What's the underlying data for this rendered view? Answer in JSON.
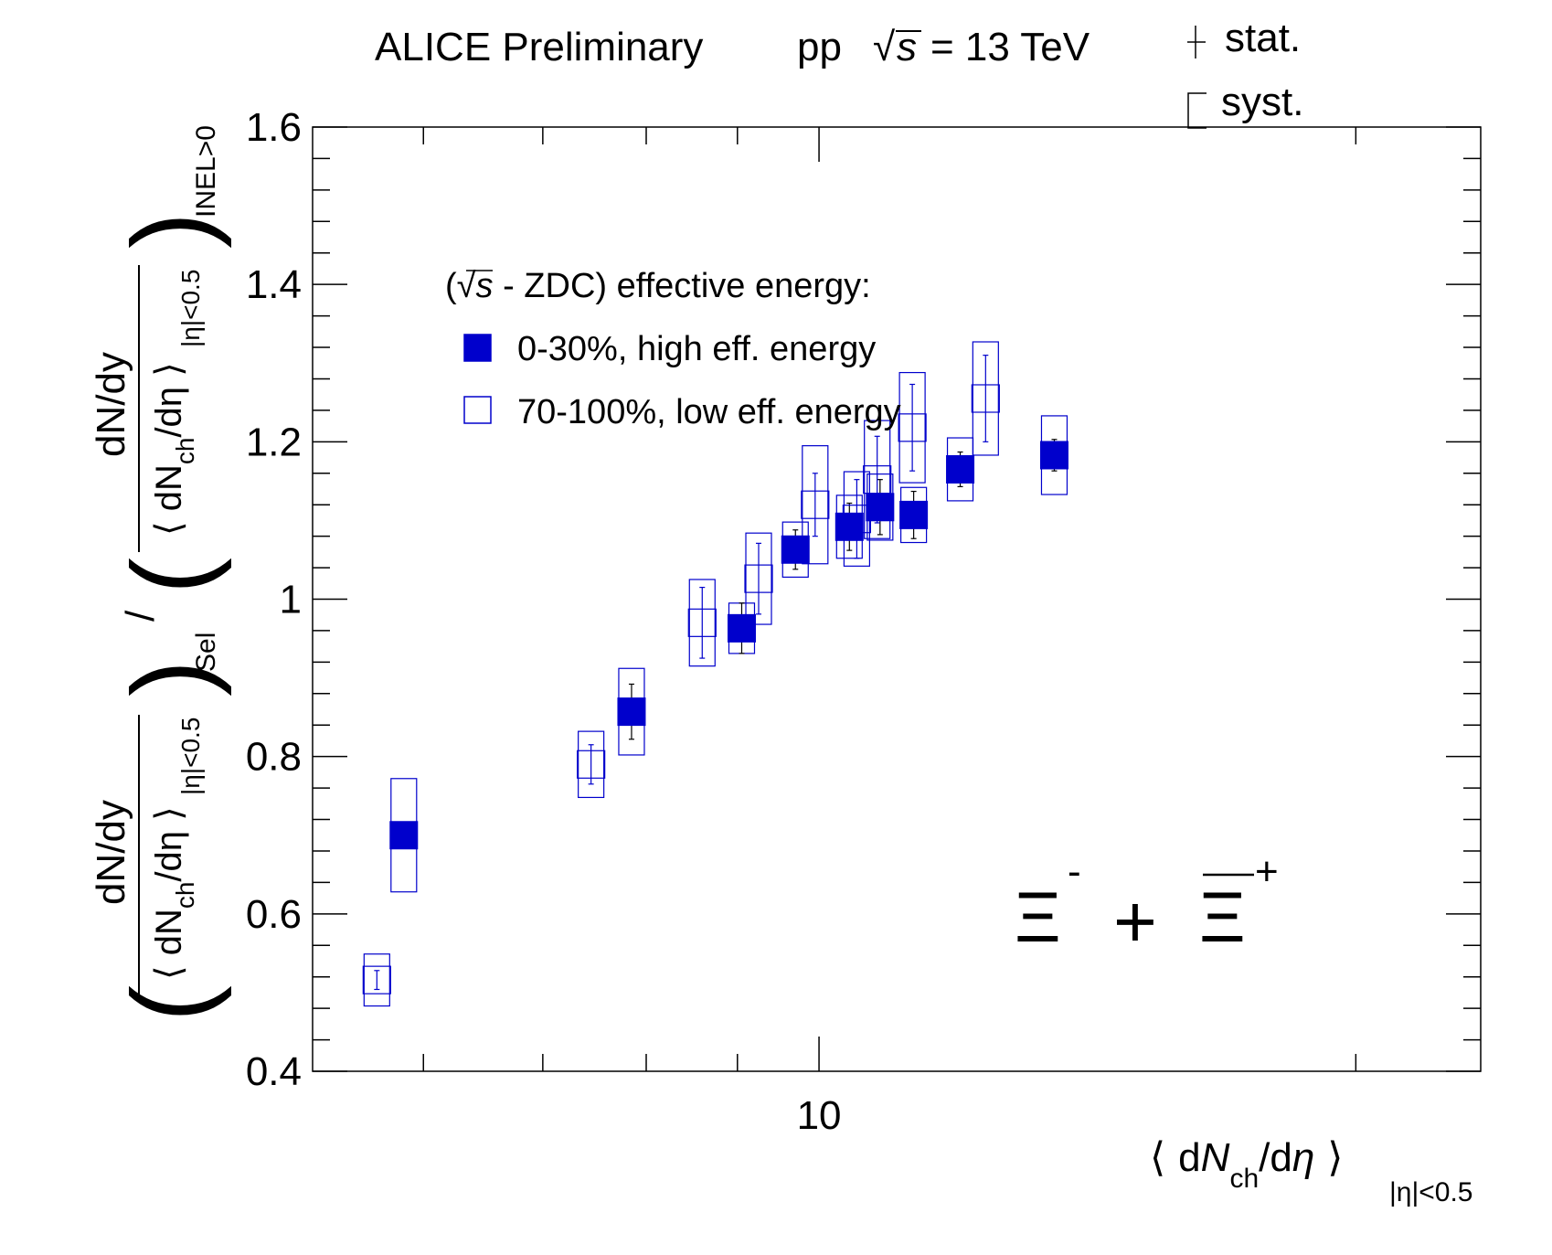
{
  "chart_data": {
    "type": "scatter",
    "title": {
      "experiment": "ALICE Preliminary",
      "system": "pp",
      "sqrt_sym": "√",
      "s": "s",
      "energy": "= 13 TeV"
    },
    "uncertainty_key": {
      "stat": "stat.",
      "syst": "syst."
    },
    "xlabel": {
      "lang": "⟨",
      "d": "d",
      "N": "N",
      "sub": "ch",
      "slash": "/d",
      "eta": "η",
      "rang": "⟩",
      "range": "|η|<0.5"
    },
    "ylabel": {
      "num": "dN/dy",
      "den_left": "⟨ dN",
      "den_sub": "ch",
      "den_right": "/dη ⟩",
      "den_range": "|η|<0.5",
      "sel": "Sel",
      "inel": "INEL>0",
      "divider": "/"
    },
    "x_scale": "log",
    "xlim": [
      5.2,
      23.5
    ],
    "ylim": [
      0.4,
      1.6
    ],
    "x_tick_labels": [
      "10"
    ],
    "y_tick_labels": [
      "0.4",
      "0.6",
      "0.8",
      "1",
      "1.2",
      "1.4",
      "1.6"
    ],
    "legend": {
      "header_open": "(",
      "header_sqrt": "√",
      "header_s": "s",
      "header_rest": " - ZDC) effective energy:",
      "placement": "top-left"
    },
    "particle_label": "Ξ- + Ξ̄+",
    "particle": {
      "base": "Ξ",
      "minus": "-",
      "plus": "+",
      "joiner": "+"
    },
    "series": [
      {
        "name": "0-30%, high eff. energy",
        "color": "#0000cc",
        "filled": true,
        "points": [
          {
            "x": 5.85,
            "y": 0.7,
            "stat": 0.005,
            "syst": 0.072
          },
          {
            "x": 7.85,
            "y": 0.857,
            "stat": 0.035,
            "syst": 0.055
          },
          {
            "x": 9.05,
            "y": 0.963,
            "stat": 0.032,
            "syst": 0.032
          },
          {
            "x": 9.7,
            "y": 1.063,
            "stat": 0.025,
            "syst": 0.035
          },
          {
            "x": 10.4,
            "y": 1.092,
            "stat": 0.03,
            "syst": 0.04
          },
          {
            "x": 10.82,
            "y": 1.117,
            "stat": 0.035,
            "syst": 0.042
          },
          {
            "x": 11.3,
            "y": 1.107,
            "stat": 0.03,
            "syst": 0.035
          },
          {
            "x": 12.0,
            "y": 1.165,
            "stat": 0.022,
            "syst": 0.04
          },
          {
            "x": 13.55,
            "y": 1.183,
            "stat": 0.02,
            "syst": 0.05
          }
        ]
      },
      {
        "name": "70-100%, low eff. energy",
        "color": "#0000cc",
        "filled": false,
        "points": [
          {
            "x": 5.65,
            "y": 0.516,
            "stat": 0.012,
            "syst": 0.033
          },
          {
            "x": 7.45,
            "y": 0.79,
            "stat": 0.025,
            "syst": 0.042
          },
          {
            "x": 8.6,
            "y": 0.97,
            "stat": 0.045,
            "syst": 0.055
          },
          {
            "x": 9.25,
            "y": 1.026,
            "stat": 0.045,
            "syst": 0.058
          },
          {
            "x": 9.95,
            "y": 1.12,
            "stat": 0.04,
            "syst": 0.075
          },
          {
            "x": 10.5,
            "y": 1.102,
            "stat": 0.05,
            "syst": 0.06
          },
          {
            "x": 10.78,
            "y": 1.152,
            "stat": 0.055,
            "syst": 0.075
          },
          {
            "x": 11.28,
            "y": 1.218,
            "stat": 0.055,
            "syst": 0.07
          },
          {
            "x": 12.4,
            "y": 1.255,
            "stat": 0.055,
            "syst": 0.072
          }
        ]
      }
    ]
  }
}
